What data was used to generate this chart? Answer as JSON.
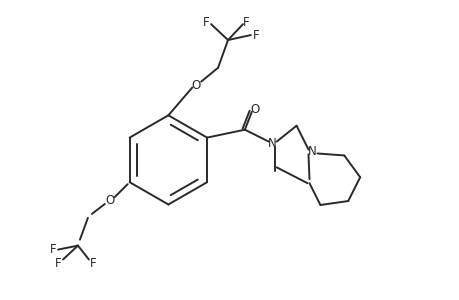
{
  "background_color": "#ffffff",
  "line_color": "#2a2a2a",
  "line_width": 1.4,
  "figsize": [
    4.6,
    3.0
  ],
  "dpi": 100,
  "xlim": [
    0,
    460
  ],
  "ylim": [
    0,
    300
  ]
}
